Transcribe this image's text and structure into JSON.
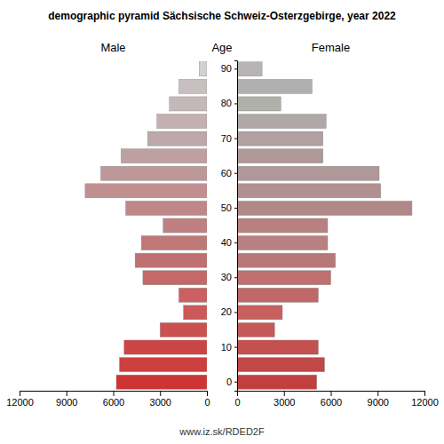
{
  "chart_data": {
    "type": "bar",
    "orientation": "horizontal",
    "title": "demographic pyramid Sächsische Schweiz-Osterzgebirge, year 2022",
    "ylabel": "Age",
    "annotations": [
      "www.iz.sk/RDED2F"
    ],
    "categories": [
      "0",
      null,
      "10",
      null,
      "20",
      null,
      "30",
      null,
      "40",
      null,
      "50",
      null,
      "60",
      null,
      "70",
      null,
      "80",
      null,
      "90"
    ],
    "series": [
      {
        "name": "Male",
        "values": [
          5800,
          5600,
          5300,
          3000,
          1500,
          1800,
          4100,
          4600,
          4200,
          2800,
          5200,
          7800,
          6800,
          5500,
          3800,
          3200,
          2400,
          1800,
          500
        ],
        "colors": [
          "#cd3535",
          "#cc4040",
          "#cc4545",
          "#cc5050",
          "#cc5858",
          "#cc6060",
          "#c46868",
          "#c07070",
          "#be7878",
          "#be8080",
          "#be8888",
          "#c09090",
          "#be9898",
          "#bea0a0",
          "#bca8a8",
          "#c4b0b0",
          "#c4b8b8",
          "#c8c0c0",
          "#d5d0d0"
        ]
      },
      {
        "name": "Female",
        "values": [
          5100,
          5600,
          5200,
          2400,
          2900,
          5200,
          6000,
          6300,
          5800,
          5800,
          11200,
          9200,
          9100,
          5500,
          5500,
          5700,
          2800,
          4800,
          1600
        ],
        "colors": [
          "#c04040",
          "#c04848",
          "#c55050",
          "#c55858",
          "#c86060",
          "#c06868",
          "#c07070",
          "#b87878",
          "#b88080",
          "#b88080",
          "#b08888",
          "#b09090",
          "#b09898",
          "#b09898",
          "#b0a0a0",
          "#b0a8a8",
          "#b0b0a8",
          "#b0b0b0",
          "#b8b4b4"
        ]
      }
    ],
    "xlim": [
      0,
      12000
    ],
    "xticks": [
      0,
      3000,
      6000,
      9000,
      12000
    ]
  }
}
